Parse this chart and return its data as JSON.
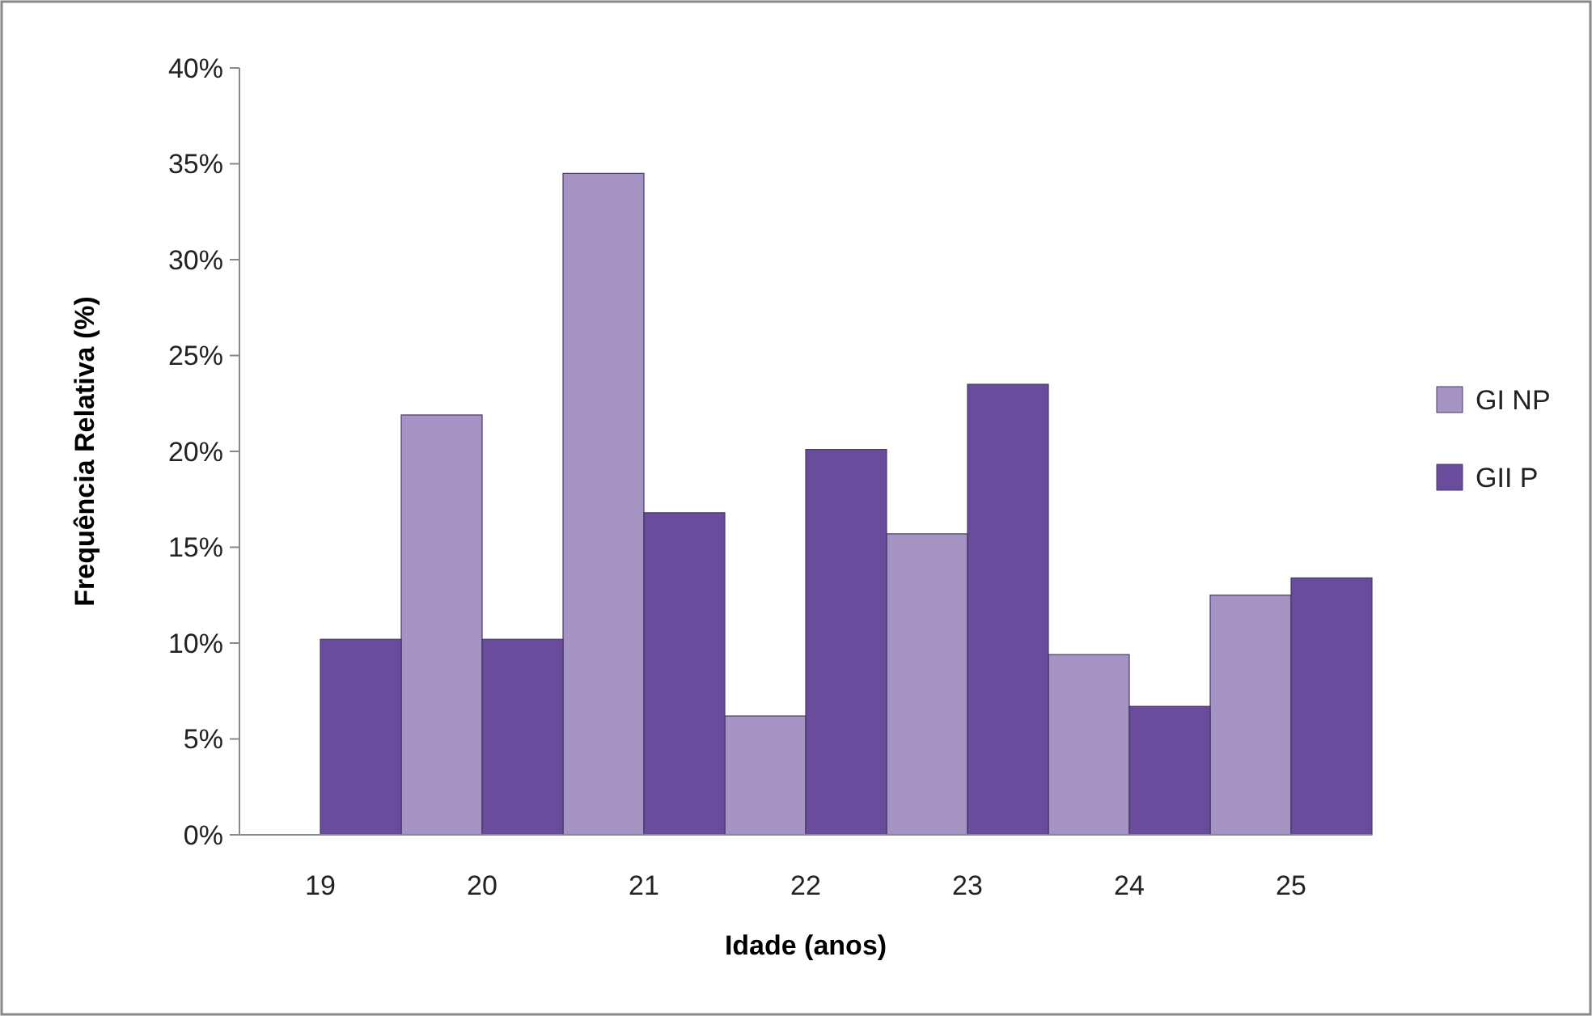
{
  "chart_data": {
    "type": "bar",
    "xlabel": "Idade (anos)",
    "ylabel": "Frequência Relativa  (%)",
    "categories": [
      "19",
      "20",
      "21",
      "22",
      "23",
      "24",
      "25"
    ],
    "series": [
      {
        "name": "GI NP",
        "color": "#a593c4",
        "values": [
          0,
          21.9,
          34.5,
          6.2,
          15.7,
          9.4,
          12.5
        ]
      },
      {
        "name": "GII P",
        "color": "#6a4c9c",
        "values": [
          10.2,
          10.2,
          16.8,
          20.1,
          23.5,
          6.7,
          13.4
        ]
      }
    ],
    "ylim": [
      0,
      40
    ],
    "yticks": [
      {
        "value": 0,
        "label": "0%"
      },
      {
        "value": 5,
        "label": "5%"
      },
      {
        "value": 10,
        "label": "10%"
      },
      {
        "value": 15,
        "label": "15%"
      },
      {
        "value": 20,
        "label": "20%"
      },
      {
        "value": 25,
        "label": "25%"
      },
      {
        "value": 30,
        "label": "30%"
      },
      {
        "value": 35,
        "label": "35%"
      },
      {
        "value": 40,
        "label": "40%"
      }
    ],
    "grid": false,
    "legend": "right"
  }
}
